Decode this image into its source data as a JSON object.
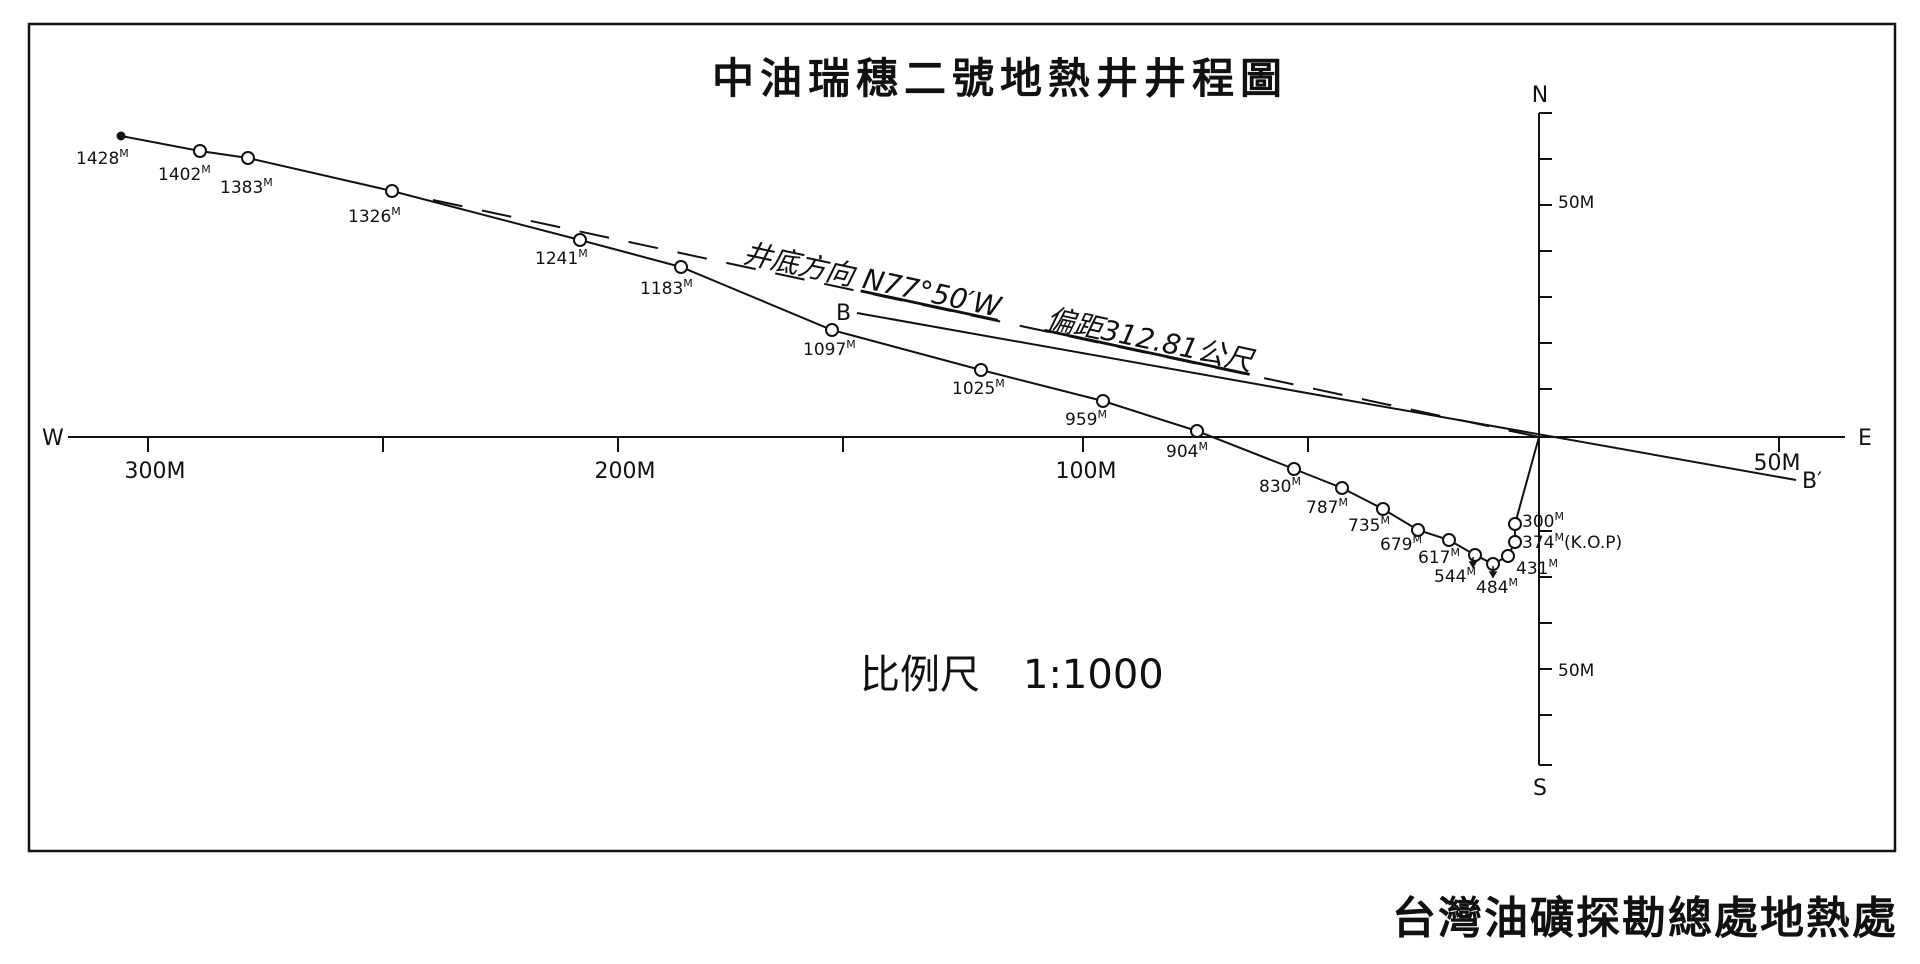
{
  "title": "中油瑞穗二號地熱井井程圖",
  "footer": "台灣油礦探勘總處地熱處",
  "scale": {
    "label": "比例尺",
    "ratio": "1:1000"
  },
  "compass": {
    "north": "N",
    "south": "S",
    "east": "E",
    "west": "W"
  },
  "axis_ticks": {
    "x": [
      "300M",
      "200M",
      "100M",
      "50M"
    ],
    "y": [
      "50M",
      "50M"
    ]
  },
  "direction_label": {
    "prefix": "井底方向",
    "bearing": "N77°50′W",
    "offset_label": "偏距312.81公尺"
  },
  "section_line": {
    "start": "B",
    "end": "B′"
  },
  "survey_points": [
    {
      "depth": "300",
      "unit": "M",
      "note": ""
    },
    {
      "depth": "374",
      "unit": "M",
      "note": "(K.O.P)"
    },
    {
      "depth": "431",
      "unit": "M",
      "note": ""
    },
    {
      "depth": "484",
      "unit": "M",
      "note": ""
    },
    {
      "depth": "544",
      "unit": "M",
      "note": ""
    },
    {
      "depth": "617",
      "unit": "M",
      "note": ""
    },
    {
      "depth": "679",
      "unit": "M",
      "note": ""
    },
    {
      "depth": "735",
      "unit": "M",
      "note": ""
    },
    {
      "depth": "787",
      "unit": "M",
      "note": ""
    },
    {
      "depth": "830",
      "unit": "M",
      "note": ""
    },
    {
      "depth": "904",
      "unit": "M",
      "note": ""
    },
    {
      "depth": "959",
      "unit": "M",
      "note": ""
    },
    {
      "depth": "1025",
      "unit": "M",
      "note": ""
    },
    {
      "depth": "1097",
      "unit": "M",
      "note": ""
    },
    {
      "depth": "1183",
      "unit": "M",
      "note": ""
    },
    {
      "depth": "1241",
      "unit": "M",
      "note": ""
    },
    {
      "depth": "1326",
      "unit": "M",
      "note": ""
    },
    {
      "depth": "1383",
      "unit": "M",
      "note": ""
    },
    {
      "depth": "1402",
      "unit": "M",
      "note": ""
    },
    {
      "depth": "1428",
      "unit": "M",
      "note": ""
    }
  ]
}
